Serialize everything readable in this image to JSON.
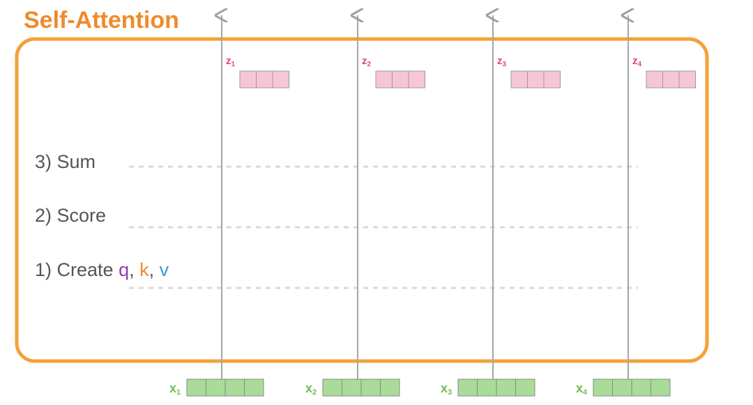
{
  "title": "Self-Attention",
  "steps": [
    {
      "parts": [
        "3) Sum"
      ]
    },
    {
      "parts": [
        "2) Score"
      ]
    },
    {
      "parts": [
        "1) Create ",
        "q",
        ", ",
        "k",
        ", ",
        "v"
      ]
    }
  ],
  "outputs": [
    {
      "label": "z",
      "sub": "1"
    },
    {
      "label": "z",
      "sub": "2"
    },
    {
      "label": "z",
      "sub": "3"
    },
    {
      "label": "z",
      "sub": "4"
    }
  ],
  "inputs": [
    {
      "label": "x",
      "sub": "1"
    },
    {
      "label": "x",
      "sub": "2"
    },
    {
      "label": "x",
      "sub": "3"
    },
    {
      "label": "x",
      "sub": "4"
    }
  ]
}
